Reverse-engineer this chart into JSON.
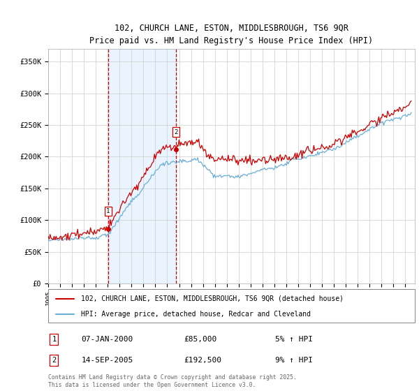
{
  "title_line1": "102, CHURCH LANE, ESTON, MIDDLESBROUGH, TS6 9QR",
  "title_line2": "Price paid vs. HM Land Registry's House Price Index (HPI)",
  "ylabel_ticks": [
    "£0",
    "£50K",
    "£100K",
    "£150K",
    "£200K",
    "£250K",
    "£300K",
    "£350K"
  ],
  "ylabel_values": [
    0,
    50000,
    100000,
    150000,
    200000,
    250000,
    300000,
    350000
  ],
  "ylim": [
    0,
    370000
  ],
  "legend_line1": "102, CHURCH LANE, ESTON, MIDDLESBROUGH, TS6 9QR (detached house)",
  "legend_line2": "HPI: Average price, detached house, Redcar and Cleveland",
  "sale1_date": "07-JAN-2000",
  "sale1_price": "£85,000",
  "sale1_hpi": "5% ↑ HPI",
  "sale1_year": 2000.03,
  "sale1_value": 85000,
  "sale2_date": "14-SEP-2005",
  "sale2_price": "£192,500",
  "sale2_hpi": "9% ↑ HPI",
  "sale2_year": 2005.71,
  "sale2_value": 192500,
  "footer": "Contains HM Land Registry data © Crown copyright and database right 2025.\nThis data is licensed under the Open Government Licence v3.0.",
  "hpi_color": "#6baed6",
  "price_color": "#cc0000",
  "vline_color": "#cc0000",
  "shade_color": "#ddeeff",
  "background_color": "#ffffff",
  "grid_color": "#cccccc"
}
